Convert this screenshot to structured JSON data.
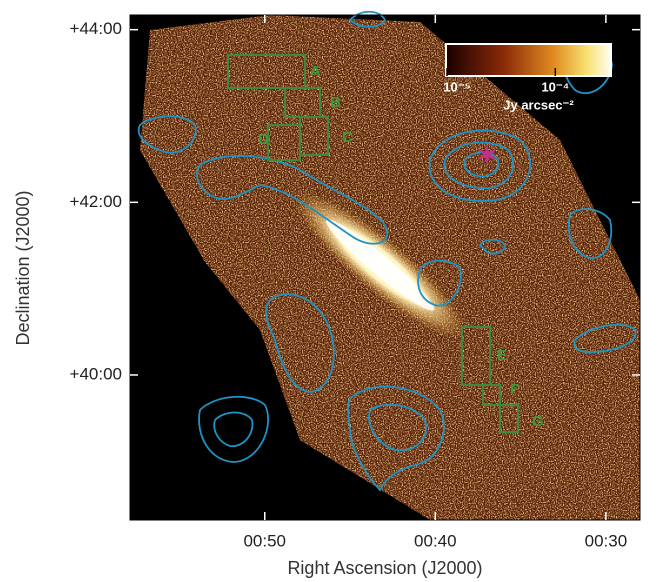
{
  "chart_data": {
    "type": "image",
    "xlabel": "Right Ascension (J2000)",
    "ylabel": "Declination (J2000)",
    "xlim": [
      57.9,
      28.0
    ],
    "xticks": [
      {
        "value": 50,
        "label": "00:50"
      },
      {
        "value": 40,
        "label": "00:40"
      },
      {
        "value": 30,
        "label": "00:30"
      }
    ],
    "ylim": [
      38.32,
      44.17
    ],
    "yticks": [
      {
        "value": 40,
        "label": "+40:00"
      },
      {
        "value": 42,
        "label": "+42:00"
      },
      {
        "value": 44,
        "label": "+44:00"
      }
    ],
    "colorbar": {
      "label": "Jy arcsec⁻²",
      "log": true,
      "lim": [
        1e-05,
        0.00032
      ],
      "ticks": [
        {
          "value": 1e-05,
          "label": "10⁻⁵"
        },
        {
          "value": 0.0001,
          "label": "10⁻⁴"
        }
      ]
    },
    "annotations": [
      "A",
      "B",
      "C",
      "D",
      "E",
      "F",
      "G"
    ]
  }
}
